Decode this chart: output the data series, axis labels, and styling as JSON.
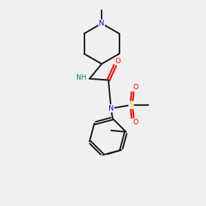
{
  "background_color": "#f0f0f0",
  "bond_color": "#1a1a1a",
  "atom_colors": {
    "N": "#0000ee",
    "NH": "#008080",
    "O": "#ff0000",
    "S": "#cccc00"
  }
}
